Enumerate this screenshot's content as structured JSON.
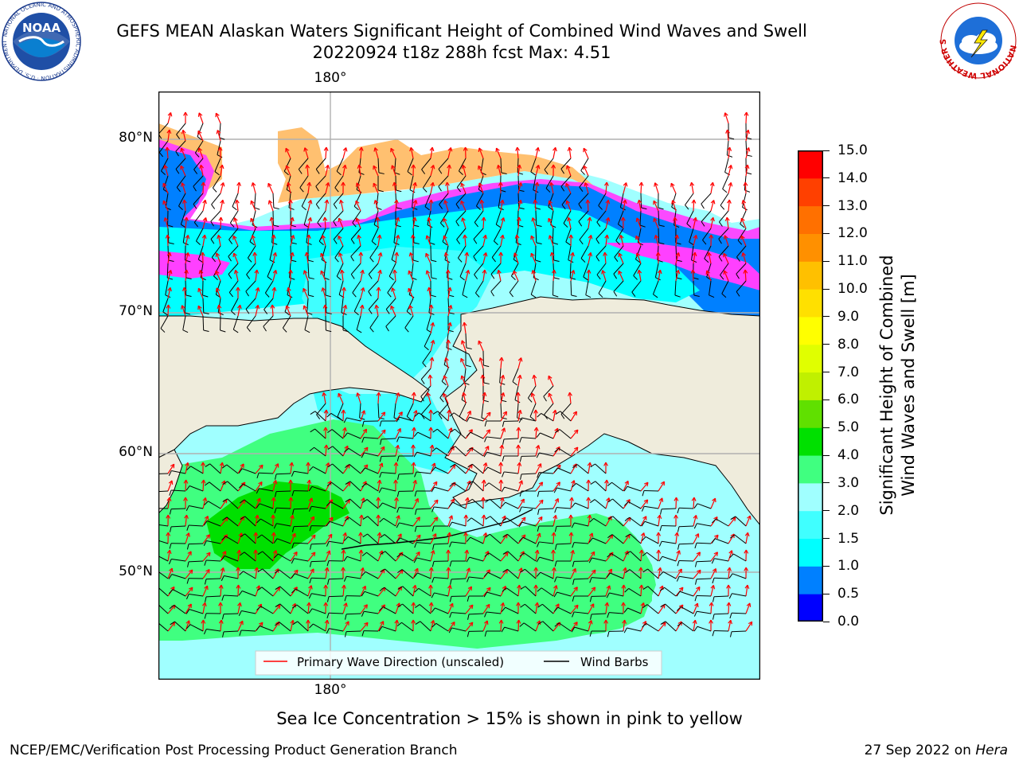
{
  "title": {
    "line1": "GEFS MEAN Alaskan Waters Significant Height of Combined Wind Waves and Swell",
    "line2": "20220924 t18z 288h fcst   Max: 4.51"
  },
  "logos": {
    "left": {
      "icon": "noaa-logo",
      "text": "NOAA",
      "ring_text": "NATIONAL OCEANIC AND ATMOSPHERIC ADMINISTRATION · U.S. DEPARTMENT OF COMMERCE"
    },
    "right": {
      "icon": "nws-logo",
      "ring_text": "NATIONAL WEATHER SERVICE"
    }
  },
  "map": {
    "lon_labels_top": [
      "180°"
    ],
    "lon_labels_bottom": [
      "180°"
    ],
    "lat_labels": [
      "80°N",
      "70°N",
      "60°N",
      "50°N"
    ],
    "colors": {
      "land": "#efecdc",
      "ice_low": "#ff40ff",
      "ice_mid": "#ffc070",
      "ice_high": "#ffff00",
      "wave_arrow": "#ff0000",
      "wind_barb": "#000000",
      "grid": "#b0b0b0"
    },
    "legend": {
      "primary_wave": "Primary Wave Direction (unscaled)",
      "wind_barbs": "Wind Barbs"
    }
  },
  "colorbar": {
    "label_line1": "Significant Height of Combined",
    "label_line2": "Wind Waves and Swell [m]",
    "ticks": [
      "0.0",
      "0.5",
      "1.0",
      "1.5",
      "2.0",
      "3.0",
      "4.0",
      "5.0",
      "6.0",
      "7.0",
      "8.0",
      "9.0",
      "10.0",
      "11.0",
      "12.0",
      "13.0",
      "14.0",
      "15.0"
    ],
    "colors": [
      "#0000ff",
      "#0080ff",
      "#00ffff",
      "#40ffff",
      "#a0ffff",
      "#40ff80",
      "#00e000",
      "#60e000",
      "#c0f000",
      "#e0ff00",
      "#ffff00",
      "#ffe000",
      "#ffc000",
      "#ff9000",
      "#ff7000",
      "#ff4000",
      "#ff0000"
    ]
  },
  "caption": "Sea Ice Concentration > 15% is shown in pink to yellow",
  "footer": {
    "left": "NCEP/EMC/Verification Post Processing Product Generation Branch",
    "right_prefix": "27 Sep 2022 on ",
    "right_host": "Hera"
  }
}
